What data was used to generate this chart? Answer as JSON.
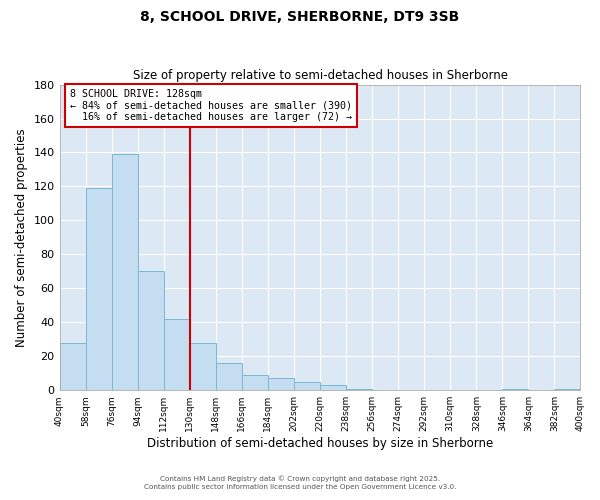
{
  "title": "8, SCHOOL DRIVE, SHERBORNE, DT9 3SB",
  "subtitle": "Size of property relative to semi-detached houses in Sherborne",
  "xlabel": "Distribution of semi-detached houses by size in Sherborne",
  "ylabel": "Number of semi-detached properties",
  "bar_values": [
    28,
    119,
    139,
    70,
    42,
    28,
    16,
    9,
    7,
    5,
    3,
    1,
    0,
    0,
    0,
    0,
    0,
    1,
    0,
    1
  ],
  "bin_edges": [
    40,
    58,
    76,
    94,
    112,
    130,
    148,
    166,
    184,
    202,
    220,
    238,
    256,
    274,
    292,
    310,
    328,
    346,
    364,
    382,
    400
  ],
  "bin_labels": [
    "40sqm",
    "58sqm",
    "76sqm",
    "94sqm",
    "112sqm",
    "130sqm",
    "148sqm",
    "166sqm",
    "184sqm",
    "202sqm",
    "220sqm",
    "238sqm",
    "256sqm",
    "274sqm",
    "292sqm",
    "310sqm",
    "328sqm",
    "346sqm",
    "364sqm",
    "382sqm",
    "400sqm"
  ],
  "bar_color": "#c5ddf0",
  "bar_edge_color": "#7ab8d4",
  "background_color": "#dde8f5",
  "grid_color": "#ffffff",
  "property_label": "8 SCHOOL DRIVE: 128sqm",
  "pct_smaller": 84,
  "pct_larger": 16,
  "n_smaller": 390,
  "n_larger": 72,
  "vline_x": 130,
  "vline_color": "#cc0000",
  "annotation_box_color": "#cc0000",
  "ylim": [
    0,
    180
  ],
  "yticks": [
    0,
    20,
    40,
    60,
    80,
    100,
    120,
    140,
    160,
    180
  ],
  "footer_line1": "Contains HM Land Registry data © Crown copyright and database right 2025.",
  "footer_line2": "Contains public sector information licensed under the Open Government Licence v3.0."
}
